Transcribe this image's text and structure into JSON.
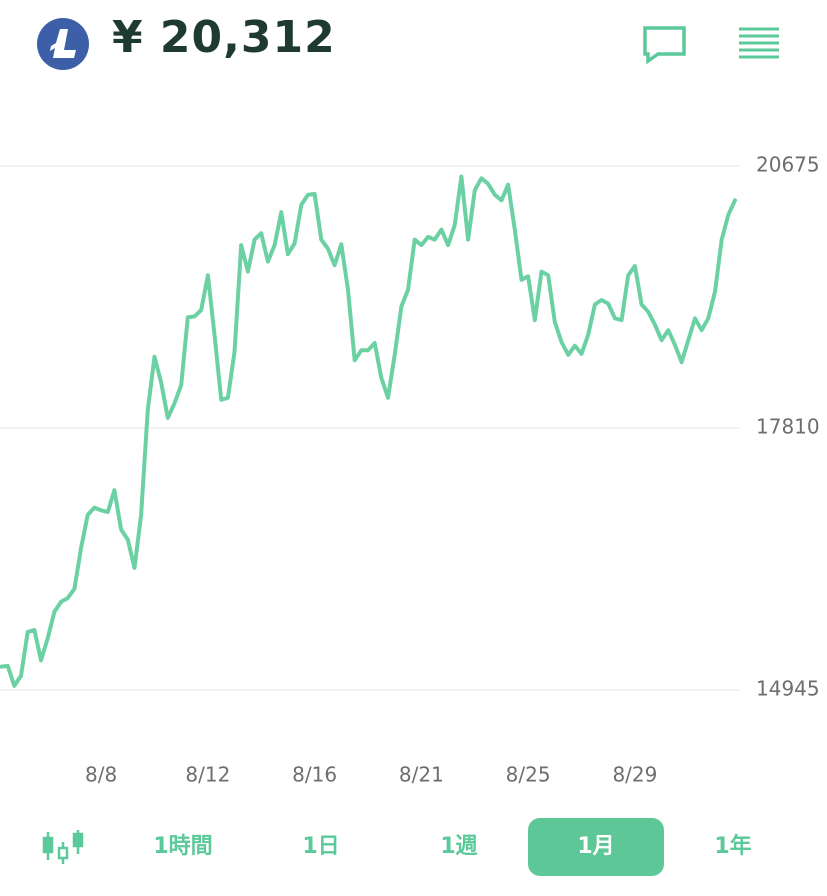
{
  "header": {
    "price": "¥ 20,312"
  },
  "chart_data": {
    "type": "line",
    "categories": [
      null,
      null,
      null,
      null,
      null,
      null,
      null,
      null,
      null,
      null,
      null,
      null,
      null,
      null,
      null,
      "8/8",
      null,
      null,
      null,
      null,
      null,
      null,
      null,
      null,
      null,
      null,
      null,
      null,
      null,
      null,
      null,
      "8/12",
      null,
      null,
      null,
      null,
      null,
      null,
      null,
      null,
      null,
      null,
      null,
      null,
      null,
      null,
      null,
      "8/16",
      null,
      null,
      null,
      null,
      null,
      null,
      null,
      null,
      null,
      null,
      null,
      null,
      null,
      null,
      null,
      "8/21",
      null,
      null,
      null,
      null,
      null,
      null,
      null,
      null,
      null,
      null,
      null,
      null,
      null,
      null,
      null,
      "8/25",
      null,
      null,
      null,
      null,
      null,
      null,
      null,
      null,
      null,
      null,
      null,
      null,
      null,
      null,
      null,
      "8/29",
      null,
      null,
      null,
      null,
      null,
      null,
      null,
      null,
      null,
      null,
      null,
      null,
      null,
      null,
      null
    ],
    "values": [
      15200,
      15210,
      14990,
      15100,
      15580,
      15600,
      15270,
      15510,
      15800,
      15910,
      15950,
      16050,
      16500,
      16860,
      16940,
      16910,
      16890,
      17130,
      16700,
      16590,
      16280,
      16860,
      18010,
      18590,
      18310,
      17920,
      18080,
      18280,
      19020,
      19030,
      19100,
      19480,
      18830,
      18120,
      18140,
      18640,
      19810,
      19520,
      19870,
      19940,
      19630,
      19810,
      20170,
      19710,
      19830,
      20250,
      20360,
      20370,
      19870,
      19770,
      19590,
      19820,
      19320,
      18550,
      18660,
      18660,
      18740,
      18360,
      18140,
      18610,
      19140,
      19320,
      19870,
      19810,
      19900,
      19870,
      19980,
      19810,
      20030,
      20560,
      19870,
      20410,
      20540,
      20480,
      20360,
      20300,
      20470,
      19980,
      19430,
      19470,
      18990,
      19520,
      19480,
      18970,
      18750,
      18610,
      18710,
      18620,
      18830,
      19160,
      19210,
      19170,
      19010,
      18990,
      19480,
      19580,
      19160,
      19080,
      18940,
      18770,
      18880,
      18720,
      18530,
      18770,
      19010,
      18880,
      19010,
      19300,
      19870,
      20140,
      20300
    ],
    "color": "#6bd1a3",
    "ylim": [
      14945,
      20675
    ],
    "yticks": [
      14945,
      17810,
      20675
    ],
    "grid": true
  },
  "timeframes": {
    "options": [
      "1時間",
      "1日",
      "1週",
      "1月",
      "1年"
    ],
    "selected": 3
  }
}
